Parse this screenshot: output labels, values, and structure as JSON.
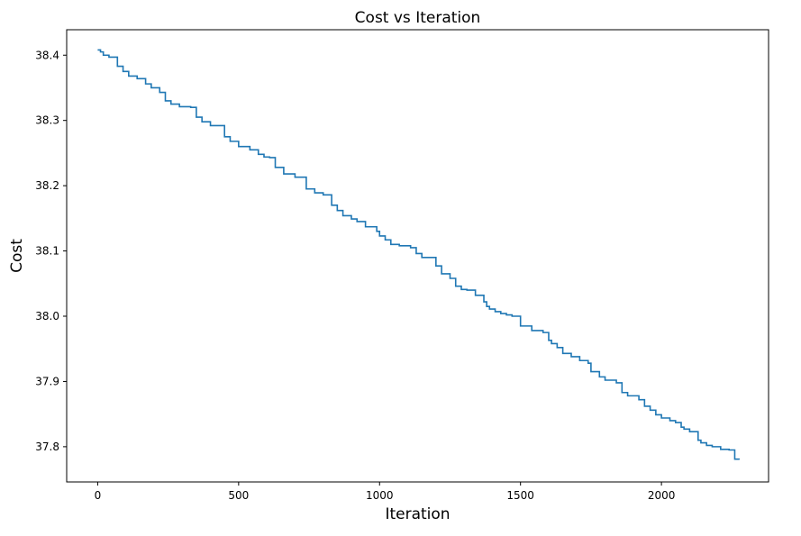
{
  "chart_data": {
    "type": "line",
    "title": "Cost vs Iteration",
    "xlabel": "Iteration",
    "ylabel": "Cost",
    "xlim": [
      -110,
      2380
    ],
    "ylim": [
      37.746,
      38.439
    ],
    "xticks": [
      0,
      500,
      1000,
      1500,
      2000
    ],
    "xtick_labels": [
      "0",
      "500",
      "1000",
      "1500",
      "2000"
    ],
    "yticks": [
      37.8,
      37.9,
      38.0,
      38.1,
      38.2,
      38.3,
      38.4
    ],
    "ytick_labels": [
      "37.8",
      "37.9",
      "38.0",
      "38.1",
      "38.2",
      "38.3",
      "38.4"
    ],
    "grid": false,
    "legend": false,
    "line_color": "#1f77b4",
    "series": [
      {
        "x": [
          0,
          10,
          20,
          40,
          70,
          90,
          110,
          140,
          170,
          190,
          220,
          240,
          260,
          290,
          330,
          350,
          370,
          400,
          450,
          470,
          500,
          540,
          570,
          590,
          610,
          630,
          660,
          700,
          740,
          770,
          800,
          830,
          850,
          870,
          900,
          920,
          950,
          990,
          1000,
          1020,
          1040,
          1070,
          1110,
          1130,
          1150,
          1200,
          1220,
          1250,
          1270,
          1290,
          1310,
          1340,
          1370,
          1380,
          1390,
          1410,
          1430,
          1450,
          1470,
          1500,
          1540,
          1580,
          1600,
          1610,
          1630,
          1650,
          1680,
          1710,
          1740,
          1750,
          1780,
          1800,
          1840,
          1860,
          1880,
          1920,
          1940,
          1960,
          1980,
          2000,
          2030,
          2050,
          2070,
          2080,
          2100,
          2130,
          2140,
          2160,
          2180,
          2210,
          2240,
          2260,
          2275
        ],
        "y": [
          38.408,
          38.405,
          38.4,
          38.397,
          38.383,
          38.375,
          38.368,
          38.364,
          38.356,
          38.35,
          38.343,
          38.33,
          38.325,
          38.321,
          38.32,
          38.305,
          38.298,
          38.292,
          38.275,
          38.268,
          38.26,
          38.255,
          38.248,
          38.244,
          38.243,
          38.228,
          38.218,
          38.213,
          38.195,
          38.189,
          38.186,
          38.17,
          38.162,
          38.154,
          38.149,
          38.145,
          38.137,
          38.13,
          38.123,
          38.117,
          38.11,
          38.108,
          38.105,
          38.096,
          38.09,
          38.077,
          38.065,
          38.058,
          38.046,
          38.041,
          38.04,
          38.032,
          38.022,
          38.015,
          38.011,
          38.007,
          38.004,
          38.002,
          38.0,
          37.985,
          37.978,
          37.975,
          37.963,
          37.958,
          37.952,
          37.943,
          37.938,
          37.932,
          37.928,
          37.915,
          37.907,
          37.902,
          37.898,
          37.883,
          37.878,
          37.872,
          37.862,
          37.856,
          37.849,
          37.844,
          37.84,
          37.837,
          37.83,
          37.827,
          37.823,
          37.81,
          37.806,
          37.802,
          37.8,
          37.796,
          37.795,
          37.781,
          37.78
        ]
      }
    ]
  }
}
